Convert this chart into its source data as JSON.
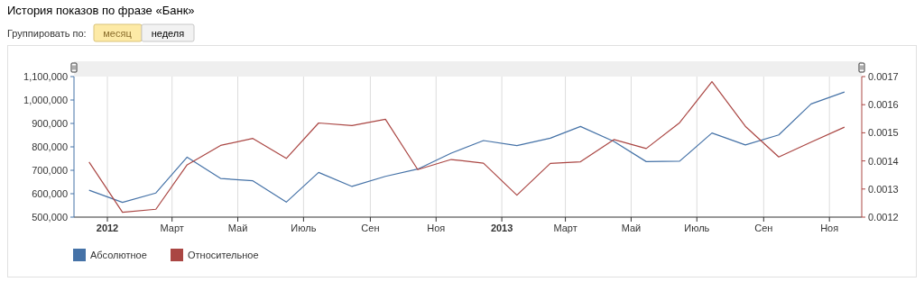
{
  "chart_data": {
    "type": "line",
    "title": "История показов по фразе «Банк»",
    "annotations": [
      "Группировать по:",
      "месяц",
      "неделя"
    ],
    "x": [
      "2011-12-15",
      "2012-01-15",
      "2012-02-15",
      "2012-03-15",
      "2012-04-15",
      "2012-05-15",
      "2012-06-15",
      "2012-07-15",
      "2012-08-15",
      "2012-09-15",
      "2012-10-15",
      "2012-11-15",
      "2012-12-15",
      "2013-01-15",
      "2013-02-15",
      "2013-03-15",
      "2013-04-15",
      "2013-05-15",
      "2013-06-15",
      "2013-07-15",
      "2013-08-15",
      "2013-09-15",
      "2013-10-15",
      "2013-11-15"
    ],
    "series": [
      {
        "name": "Абсолютное",
        "color": "#4572a7",
        "values": [
          615000,
          563000,
          603000,
          756000,
          665000,
          655000,
          564000,
          691000,
          631000,
          674000,
          705000,
          773000,
          827000,
          805000,
          837000,
          887000,
          823000,
          737000,
          739000,
          859000,
          808000,
          851000,
          983000,
          1034000
        ]
      },
      {
        "name": "Относительное",
        "color": "#aa4643",
        "axis": "y2",
        "values": [
          0.001396,
          0.001217,
          0.001228,
          0.001386,
          0.001455,
          0.00148,
          0.001409,
          0.001535,
          0.001526,
          0.001548,
          0.001369,
          0.001405,
          0.001392,
          0.001278,
          0.001391,
          0.001397,
          0.001476,
          0.001444,
          0.001536,
          0.001682,
          0.001523,
          0.001414,
          0.001467,
          0.00152
        ]
      }
    ],
    "xlim": [
      "2011-12-01",
      "2013-12-01"
    ],
    "xticks": [
      {
        "value": "2012-01-01",
        "label": "2012"
      },
      {
        "value": "2012-03-01",
        "label": "Март"
      },
      {
        "value": "2012-05-01",
        "label": "Май"
      },
      {
        "value": "2012-07-01",
        "label": "Июль"
      },
      {
        "value": "2012-09-01",
        "label": "Сен"
      },
      {
        "value": "2012-11-01",
        "label": "Ноя"
      },
      {
        "value": "2013-01-01",
        "label": "2013"
      },
      {
        "value": "2013-03-01",
        "label": "Март"
      },
      {
        "value": "2013-05-01",
        "label": "Май"
      },
      {
        "value": "2013-07-01",
        "label": "Июль"
      },
      {
        "value": "2013-09-01",
        "label": "Сен"
      },
      {
        "value": "2013-11-01",
        "label": "Ноя"
      }
    ],
    "ylim": [
      500000,
      1100000
    ],
    "yticks": [
      {
        "value": 500000,
        "label": "500,000"
      },
      {
        "value": 600000,
        "label": "600,000"
      },
      {
        "value": 700000,
        "label": "700,000"
      },
      {
        "value": 800000,
        "label": "800,000"
      },
      {
        "value": 900000,
        "label": "900,000"
      },
      {
        "value": 1000000,
        "label": "1,000,000"
      },
      {
        "value": 1100000,
        "label": "1,100,000"
      }
    ],
    "y2lim": [
      0.0012,
      0.0017
    ],
    "y2ticks": [
      0.0012,
      0.0013,
      0.0014,
      0.0015,
      0.0016,
      0.0017
    ],
    "grid": "x",
    "legend": "bottom",
    "marker": "none",
    "line_style": "solid"
  }
}
